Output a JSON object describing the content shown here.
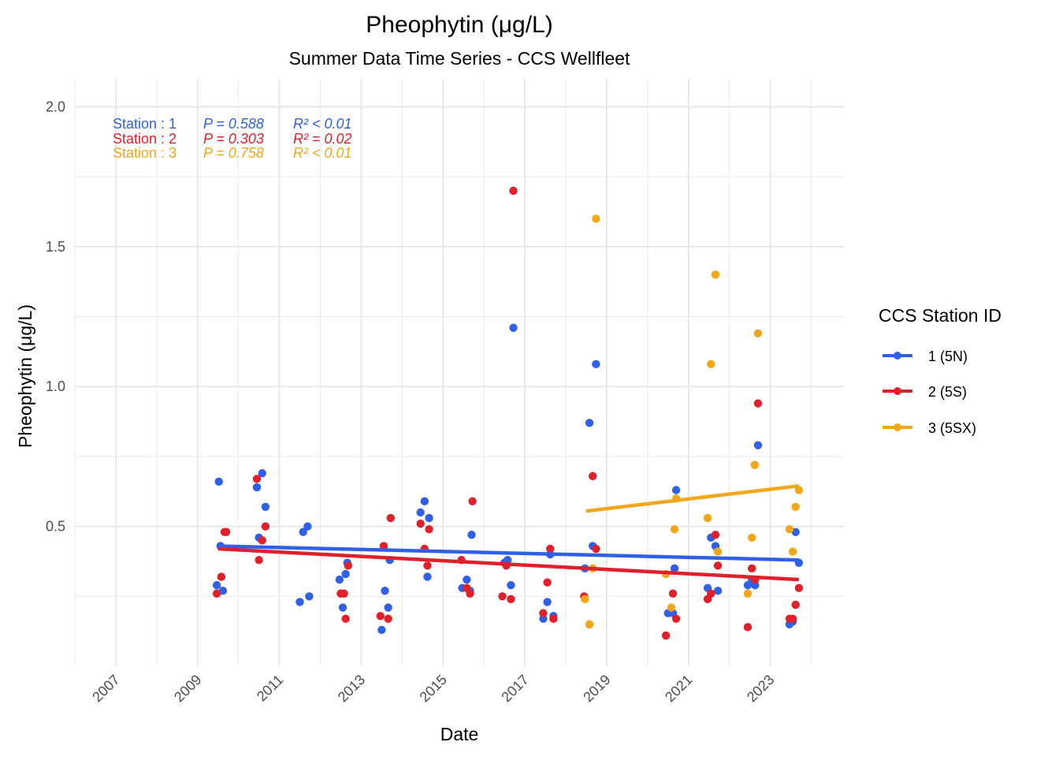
{
  "chart_data": {
    "type": "scatter",
    "title": "Pheophytin (μg/L)",
    "subtitle": "Summer Data Time Series - CCS Wellfleet",
    "xlabel": "Date",
    "ylabel": "Pheophytin (μg/L)",
    "xlim": [
      2006.0,
      2024.8
    ],
    "ylim": [
      0.0,
      2.1
    ],
    "x_ticks": [
      "2007",
      "2009",
      "2011",
      "2013",
      "2015",
      "2017",
      "2019",
      "2021",
      "2023"
    ],
    "y_ticks": [
      "0.5",
      "1.0",
      "1.5",
      "2.0"
    ],
    "grid": true,
    "legend": {
      "title": "CCS Station ID",
      "placement": "right",
      "entries": [
        "1 (5N)",
        "2 (5S)",
        "3 (5SX)"
      ]
    },
    "stats": [
      {
        "station": "Station : 1",
        "p": "P = 0.588",
        "r2": "R² < 0.01"
      },
      {
        "station": "Station : 2",
        "p": "P = 0.303",
        "r2": "R² = 0.02"
      },
      {
        "station": "Station : 3",
        "p": "P = 0.758",
        "r2": "R² < 0.01"
      }
    ],
    "series": [
      {
        "name": "1 (5N)",
        "color": "#2f60e6",
        "trend": [
          [
            2009.5,
            0.43
          ],
          [
            2023.7,
            0.38
          ]
        ],
        "points": [
          [
            2009.47,
            0.29
          ],
          [
            2009.52,
            0.66
          ],
          [
            2009.56,
            0.43
          ],
          [
            2009.62,
            0.27
          ],
          [
            2010.45,
            0.64
          ],
          [
            2010.5,
            0.46
          ],
          [
            2010.58,
            0.69
          ],
          [
            2010.66,
            0.57
          ],
          [
            2011.5,
            0.23
          ],
          [
            2011.58,
            0.48
          ],
          [
            2011.69,
            0.5
          ],
          [
            2011.73,
            0.25
          ],
          [
            2012.47,
            0.31
          ],
          [
            2012.55,
            0.21
          ],
          [
            2012.62,
            0.33
          ],
          [
            2012.66,
            0.37
          ],
          [
            2013.5,
            0.13
          ],
          [
            2013.58,
            0.27
          ],
          [
            2013.66,
            0.21
          ],
          [
            2013.7,
            0.38
          ],
          [
            2014.45,
            0.55
          ],
          [
            2014.55,
            0.59
          ],
          [
            2014.62,
            0.32
          ],
          [
            2014.66,
            0.53
          ],
          [
            2015.47,
            0.28
          ],
          [
            2015.58,
            0.31
          ],
          [
            2015.66,
            0.27
          ],
          [
            2015.7,
            0.47
          ],
          [
            2016.5,
            0.37
          ],
          [
            2016.58,
            0.38
          ],
          [
            2016.66,
            0.29
          ],
          [
            2016.72,
            1.21
          ],
          [
            2017.45,
            0.17
          ],
          [
            2017.55,
            0.23
          ],
          [
            2017.62,
            0.4
          ],
          [
            2017.7,
            0.18
          ],
          [
            2018.47,
            0.35
          ],
          [
            2018.58,
            0.87
          ],
          [
            2018.66,
            0.43
          ],
          [
            2018.74,
            1.08
          ],
          [
            2020.5,
            0.19
          ],
          [
            2020.62,
            0.19
          ],
          [
            2020.66,
            0.35
          ],
          [
            2020.7,
            0.63
          ],
          [
            2021.47,
            0.28
          ],
          [
            2021.55,
            0.46
          ],
          [
            2021.66,
            0.43
          ],
          [
            2021.72,
            0.27
          ],
          [
            2022.45,
            0.29
          ],
          [
            2022.55,
            0.31
          ],
          [
            2022.63,
            0.29
          ],
          [
            2022.7,
            0.79
          ],
          [
            2023.47,
            0.15
          ],
          [
            2023.55,
            0.16
          ],
          [
            2023.62,
            0.48
          ],
          [
            2023.7,
            0.37
          ]
        ]
      },
      {
        "name": "2 (5S)",
        "color": "#e0202a",
        "trend": [
          [
            2009.5,
            0.42
          ],
          [
            2023.7,
            0.31
          ]
        ],
        "points": [
          [
            2009.47,
            0.26
          ],
          [
            2009.58,
            0.32
          ],
          [
            2009.66,
            0.48
          ],
          [
            2009.7,
            0.48
          ],
          [
            2010.45,
            0.67
          ],
          [
            2010.5,
            0.38
          ],
          [
            2010.58,
            0.45
          ],
          [
            2010.66,
            0.5
          ],
          [
            2012.5,
            0.26
          ],
          [
            2012.58,
            0.26
          ],
          [
            2012.62,
            0.17
          ],
          [
            2012.68,
            0.36
          ],
          [
            2013.47,
            0.18
          ],
          [
            2013.55,
            0.43
          ],
          [
            2013.66,
            0.17
          ],
          [
            2013.72,
            0.53
          ],
          [
            2014.45,
            0.51
          ],
          [
            2014.55,
            0.42
          ],
          [
            2014.62,
            0.36
          ],
          [
            2014.66,
            0.49
          ],
          [
            2015.45,
            0.38
          ],
          [
            2015.58,
            0.28
          ],
          [
            2015.66,
            0.26
          ],
          [
            2015.72,
            0.59
          ],
          [
            2016.45,
            0.25
          ],
          [
            2016.55,
            0.36
          ],
          [
            2016.66,
            0.24
          ],
          [
            2016.72,
            1.7
          ],
          [
            2017.45,
            0.19
          ],
          [
            2017.55,
            0.3
          ],
          [
            2017.62,
            0.42
          ],
          [
            2017.7,
            0.17
          ],
          [
            2018.45,
            0.25
          ],
          [
            2018.58,
            0.15
          ],
          [
            2018.66,
            0.68
          ],
          [
            2018.74,
            0.42
          ],
          [
            2020.45,
            0.11
          ],
          [
            2020.62,
            0.26
          ],
          [
            2020.7,
            0.17
          ],
          [
            2021.47,
            0.24
          ],
          [
            2021.55,
            0.26
          ],
          [
            2021.66,
            0.47
          ],
          [
            2021.72,
            0.36
          ],
          [
            2022.45,
            0.14
          ],
          [
            2022.55,
            0.35
          ],
          [
            2022.63,
            0.31
          ],
          [
            2022.7,
            0.94
          ],
          [
            2023.47,
            0.17
          ],
          [
            2023.55,
            0.17
          ],
          [
            2023.62,
            0.22
          ],
          [
            2023.7,
            0.28
          ]
        ]
      },
      {
        "name": "3 (5SX)",
        "color": "#f2a71b",
        "trend": [
          [
            2018.5,
            0.555
          ],
          [
            2023.7,
            0.645
          ]
        ],
        "points": [
          [
            2018.47,
            0.24
          ],
          [
            2018.58,
            0.15
          ],
          [
            2018.66,
            0.35
          ],
          [
            2018.74,
            1.6
          ],
          [
            2020.45,
            0.33
          ],
          [
            2020.58,
            0.21
          ],
          [
            2020.66,
            0.49
          ],
          [
            2020.7,
            0.6
          ],
          [
            2021.47,
            0.53
          ],
          [
            2021.55,
            1.08
          ],
          [
            2021.66,
            1.4
          ],
          [
            2021.72,
            0.41
          ],
          [
            2022.45,
            0.26
          ],
          [
            2022.55,
            0.46
          ],
          [
            2022.62,
            0.72
          ],
          [
            2022.7,
            1.19
          ],
          [
            2023.47,
            0.49
          ],
          [
            2023.55,
            0.41
          ],
          [
            2023.62,
            0.57
          ],
          [
            2023.7,
            0.63
          ]
        ]
      }
    ]
  }
}
